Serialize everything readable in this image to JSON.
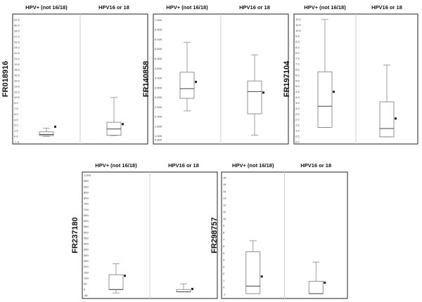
{
  "chart_data": [
    {
      "type": "box",
      "ylabel": "FR018916",
      "groups": [
        "HPV+ (not 16/18)",
        "HPV16 or 18"
      ],
      "ylim": [
        -1.5,
        32.5
      ],
      "yticks": [
        "-1.5",
        "0.0",
        "1.5",
        "3.0",
        "4.5",
        "6.0",
        "7.5",
        "9.0",
        "10.5",
        "12.0",
        "13.5",
        "15.0",
        "16.5",
        "18.0",
        "19.5",
        "21.0",
        "22.5",
        "24.0",
        "25.5",
        "27.0",
        "28.5",
        "30.0",
        "31.5"
      ],
      "boxes": [
        {
          "min": 0.0,
          "q1": 0.2,
          "median": 0.5,
          "q3": 1.2,
          "max": 2.2,
          "mean": 2.6
        },
        {
          "min": 0.2,
          "q1": 0.3,
          "median": 2.0,
          "q3": 3.8,
          "max": 10.5,
          "mean": 3.3
        }
      ]
    },
    {
      "type": "box",
      "ylabel": "FR140858",
      "groups": [
        "HPV+ (not 16/18)",
        "HPV16 or 18"
      ],
      "ylim": [
        0.7,
        7.2
      ],
      "yticks": [
        "0.800",
        "1.000",
        "1.500",
        "2.000",
        "2.500",
        "3.000",
        "3.500",
        "4.000",
        "4.500",
        "5.000",
        "5.500",
        "6.000",
        "6.500",
        "7.000"
      ],
      "boxes": [
        {
          "min": 2.3,
          "q1": 2.95,
          "median": 3.45,
          "q3": 4.3,
          "max": 5.85,
          "mean": 3.8
        },
        {
          "min": 1.05,
          "q1": 2.15,
          "median": 3.3,
          "q3": 3.85,
          "max": 5.2,
          "mean": 3.25
        }
      ]
    },
    {
      "type": "box",
      "ylabel": "FR197104",
      "groups": [
        "HPV+ (not 16/18)",
        "HPV16 or 18"
      ],
      "ylim": [
        0.0,
        11.3
      ],
      "yticks": [
        "0.0",
        "0.5",
        "1.0",
        "1.5",
        "2.0",
        "2.5",
        "3.0",
        "3.5",
        "4.0",
        "4.5",
        "5.0",
        "5.5",
        "6.0",
        "6.5",
        "7.0",
        "7.5",
        "8.0",
        "8.5",
        "9.0",
        "9.5",
        "10.0",
        "10.5",
        "11.0"
      ],
      "boxes": [
        {
          "min": 1.3,
          "q1": 1.3,
          "median": 3.2,
          "q3": 6.3,
          "max": 11.0,
          "mean": 4.5
        },
        {
          "min": 0.45,
          "q1": 0.45,
          "median": 1.2,
          "q3": 3.6,
          "max": 6.9,
          "mean": 2.1
        }
      ]
    },
    {
      "type": "box",
      "ylabel": "FR237180",
      "groups": [
        "HPV+ (not 16/18)",
        "HPV16 or 18"
      ],
      "ylim": [
        -60,
        1010
      ],
      "yticks": [
        "-50",
        "0",
        "50",
        "100",
        "150",
        "200",
        "250",
        "300",
        "350",
        "400",
        "450",
        "500",
        "550",
        "600",
        "650",
        "700",
        "750",
        "800",
        "850",
        "900",
        "950",
        "1,000"
      ],
      "boxes": [
        {
          "min": -30,
          "q1": 0,
          "median": 0,
          "q3": 130,
          "max": 225,
          "mean": 120
        },
        {
          "min": -20,
          "q1": -20,
          "median": -20,
          "q3": 0,
          "max": 50,
          "mean": 5
        }
      ]
    },
    {
      "type": "box",
      "ylabel": "FR298757",
      "groups": [
        "HPV+ (not 16/18)",
        "HPV16 or 18"
      ],
      "ylim": [
        -1.3,
        16.5
      ],
      "yticks": [
        "-1",
        "0",
        "1",
        "2",
        "3",
        "4",
        "5",
        "6",
        "7",
        "8",
        "9",
        "10",
        "11",
        "12",
        "13",
        "14",
        "15",
        "16"
      ],
      "boxes": [
        {
          "min": -0.9,
          "q1": -0.9,
          "median": 0.2,
          "q3": 5.2,
          "max": 6.8,
          "mean": 1.6
        },
        {
          "min": -0.9,
          "q1": -0.9,
          "median": -0.9,
          "q3": 0.9,
          "max": 3.7,
          "mean": 0.7
        }
      ]
    }
  ]
}
